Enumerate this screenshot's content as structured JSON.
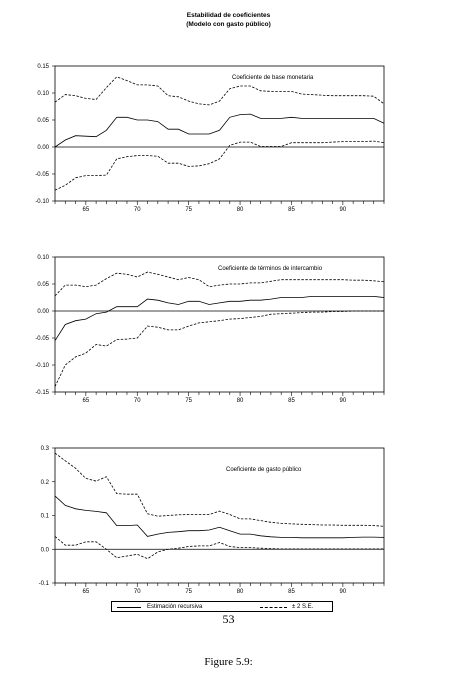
{
  "header": {
    "title": "Estabilidad de coeficientes",
    "subtitle": "(Modelo con gasto público)"
  },
  "legend": {
    "estimate_label": "Estimación recursiva",
    "band_label": "± 2 S.E."
  },
  "page_number": "53",
  "caption": "Figure 5.9:",
  "chart_data": [
    {
      "type": "line",
      "title": "Coeficiente de base monetaria",
      "xlim": [
        62,
        94
      ],
      "ylim": [
        -0.1,
        0.15
      ],
      "yticks": [
        0.15,
        0.1,
        0.05,
        0.0,
        -0.05,
        -0.1
      ],
      "ytick_labels": [
        "0.15",
        "0.10",
        "0.05",
        "0.00",
        "-0.05",
        "-0.10"
      ],
      "xticks": [
        65,
        70,
        75,
        80,
        85,
        90
      ],
      "x": [
        62,
        63,
        64,
        65,
        66,
        67,
        68,
        69,
        70,
        71,
        72,
        73,
        74,
        75,
        76,
        77,
        78,
        79,
        80,
        81,
        82,
        83,
        84,
        85,
        86,
        87,
        88,
        89,
        90,
        91,
        92,
        93,
        94
      ],
      "series": [
        {
          "name": "Estimación recursiva",
          "style": "solid",
          "values": [
            0.0,
            0.013,
            0.021,
            0.02,
            0.019,
            0.031,
            0.055,
            0.055,
            0.05,
            0.05,
            0.047,
            0.033,
            0.033,
            0.024,
            0.024,
            0.024,
            0.031,
            0.055,
            0.06,
            0.061,
            0.053,
            0.053,
            0.053,
            0.055,
            0.053,
            0.053,
            0.053,
            0.053,
            0.053,
            0.053,
            0.053,
            0.053,
            0.044
          ]
        },
        {
          "name": "+2 S.E.",
          "style": "dashed",
          "values": [
            0.083,
            0.097,
            0.095,
            0.09,
            0.088,
            0.11,
            0.13,
            0.123,
            0.115,
            0.115,
            0.113,
            0.095,
            0.093,
            0.085,
            0.08,
            0.078,
            0.085,
            0.108,
            0.113,
            0.113,
            0.104,
            0.103,
            0.103,
            0.103,
            0.098,
            0.097,
            0.096,
            0.095,
            0.095,
            0.095,
            0.095,
            0.094,
            0.08
          ]
        },
        {
          "name": "-2 S.E.",
          "style": "dashed",
          "values": [
            -0.08,
            -0.071,
            -0.057,
            -0.053,
            -0.053,
            -0.052,
            -0.022,
            -0.018,
            -0.016,
            -0.016,
            -0.017,
            -0.03,
            -0.03,
            -0.036,
            -0.035,
            -0.031,
            -0.022,
            0.003,
            0.009,
            0.009,
            0.001,
            0.001,
            0.001,
            0.008,
            0.008,
            0.008,
            0.008,
            0.009,
            0.01,
            0.01,
            0.01,
            0.011,
            0.008
          ]
        }
      ]
    },
    {
      "type": "line",
      "title": "Coeficiente de términos de intercambio",
      "xlim": [
        62,
        94
      ],
      "ylim": [
        -0.15,
        0.1
      ],
      "yticks": [
        0.1,
        0.05,
        0.0,
        -0.05,
        -0.1,
        -0.15
      ],
      "ytick_labels": [
        "0.10",
        "0.05",
        "0.00",
        "-0.05",
        "-0.10",
        "-0.15"
      ],
      "xticks": [
        65,
        70,
        75,
        80,
        85,
        90
      ],
      "x": [
        62,
        63,
        64,
        65,
        66,
        67,
        68,
        69,
        70,
        71,
        72,
        73,
        74,
        75,
        76,
        77,
        78,
        79,
        80,
        81,
        82,
        83,
        84,
        85,
        86,
        87,
        88,
        89,
        90,
        91,
        92,
        93,
        94
      ],
      "series": [
        {
          "name": "Estimación recursiva",
          "style": "solid",
          "values": [
            -0.055,
            -0.025,
            -0.018,
            -0.015,
            -0.005,
            -0.002,
            0.008,
            0.008,
            0.008,
            0.022,
            0.02,
            0.015,
            0.012,
            0.018,
            0.018,
            0.012,
            0.015,
            0.018,
            0.018,
            0.02,
            0.02,
            0.022,
            0.025,
            0.025,
            0.025,
            0.027,
            0.027,
            0.027,
            0.027,
            0.027,
            0.027,
            0.027,
            0.025
          ]
        },
        {
          "name": "+2 S.E.",
          "style": "dashed",
          "values": [
            0.028,
            0.048,
            0.048,
            0.045,
            0.048,
            0.06,
            0.07,
            0.068,
            0.063,
            0.072,
            0.068,
            0.063,
            0.058,
            0.062,
            0.058,
            0.045,
            0.048,
            0.05,
            0.05,
            0.052,
            0.052,
            0.055,
            0.058,
            0.058,
            0.058,
            0.058,
            0.058,
            0.058,
            0.058,
            0.057,
            0.057,
            0.056,
            0.054
          ]
        },
        {
          "name": "-2 S.E.",
          "style": "dashed",
          "values": [
            -0.14,
            -0.1,
            -0.085,
            -0.078,
            -0.062,
            -0.065,
            -0.053,
            -0.052,
            -0.05,
            -0.028,
            -0.03,
            -0.035,
            -0.035,
            -0.028,
            -0.022,
            -0.02,
            -0.018,
            -0.015,
            -0.014,
            -0.012,
            -0.01,
            -0.006,
            -0.005,
            -0.004,
            -0.003,
            -0.002,
            -0.002,
            -0.001,
            -0.001,
            0.0,
            0.0,
            0.0,
            0.0
          ]
        }
      ]
    },
    {
      "type": "line",
      "title": "Coeficiente de gasto público",
      "xlim": [
        62,
        94
      ],
      "ylim": [
        -0.1,
        0.3
      ],
      "yticks": [
        0.3,
        0.2,
        0.1,
        0.0,
        -0.1
      ],
      "ytick_labels": [
        "0.3",
        "0.2",
        "0.1",
        "0.0",
        "-0.1"
      ],
      "xticks": [
        65,
        70,
        75,
        80,
        85,
        90
      ],
      "x": [
        62,
        63,
        64,
        65,
        66,
        67,
        68,
        69,
        70,
        71,
        72,
        73,
        74,
        75,
        76,
        77,
        78,
        79,
        80,
        81,
        82,
        83,
        84,
        85,
        86,
        87,
        88,
        89,
        90,
        91,
        92,
        93,
        94
      ],
      "series": [
        {
          "name": "Estimación recursiva",
          "style": "solid",
          "values": [
            0.158,
            0.13,
            0.12,
            0.115,
            0.112,
            0.108,
            0.07,
            0.07,
            0.072,
            0.038,
            0.045,
            0.05,
            0.052,
            0.055,
            0.055,
            0.057,
            0.065,
            0.055,
            0.045,
            0.045,
            0.04,
            0.037,
            0.035,
            0.035,
            0.034,
            0.034,
            0.034,
            0.034,
            0.034,
            0.035,
            0.036,
            0.036,
            0.035
          ]
        },
        {
          "name": "+2 S.E.",
          "style": "dashed",
          "values": [
            0.285,
            0.262,
            0.24,
            0.21,
            0.202,
            0.215,
            0.165,
            0.163,
            0.163,
            0.105,
            0.098,
            0.1,
            0.102,
            0.103,
            0.103,
            0.103,
            0.113,
            0.103,
            0.09,
            0.09,
            0.085,
            0.08,
            0.077,
            0.075,
            0.074,
            0.073,
            0.072,
            0.072,
            0.071,
            0.071,
            0.071,
            0.07,
            0.068
          ]
        },
        {
          "name": "-2 S.E.",
          "style": "dashed",
          "values": [
            0.038,
            0.012,
            0.012,
            0.022,
            0.022,
            0.0,
            -0.025,
            -0.02,
            -0.015,
            -0.028,
            -0.008,
            0.0,
            0.003,
            0.008,
            0.01,
            0.01,
            0.02,
            0.008,
            0.005,
            0.005,
            0.003,
            0.002,
            0.001,
            0.001,
            0.001,
            0.001,
            0.001,
            0.001,
            0.001,
            0.001,
            0.001,
            0.001,
            0.001
          ]
        }
      ]
    }
  ]
}
